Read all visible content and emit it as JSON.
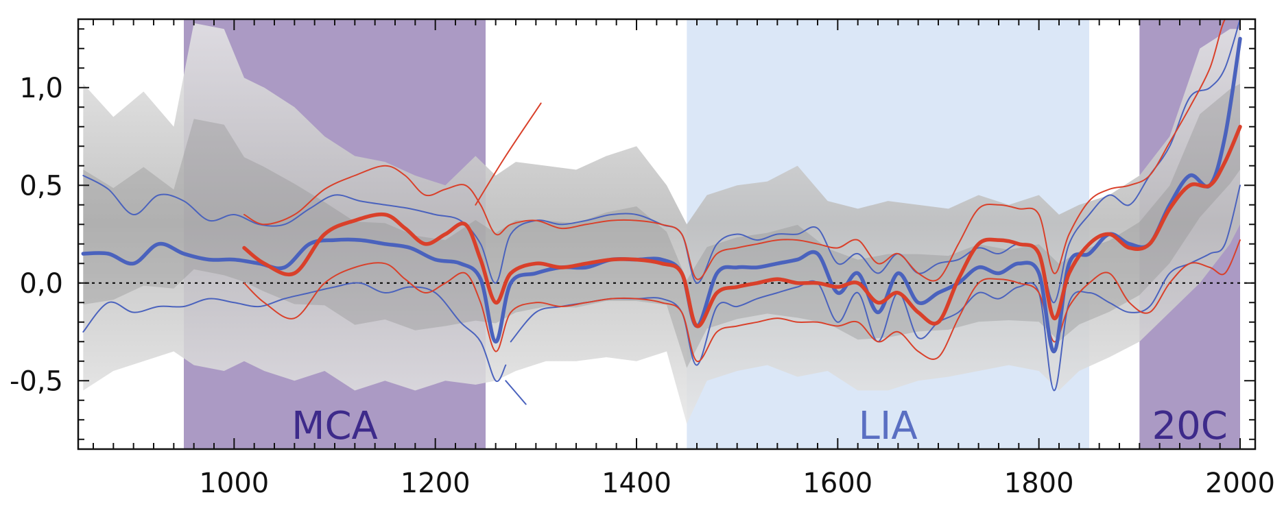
{
  "chart_data": {
    "type": "line",
    "title": "",
    "xlabel": "",
    "ylabel": "",
    "xlim": [
      845,
      2015
    ],
    "ylim": [
      -0.85,
      1.35
    ],
    "x_ticks": [
      1000,
      1200,
      1400,
      1600,
      1800,
      2000
    ],
    "x_tick_labels": [
      "1000",
      "1200",
      "1400",
      "1600",
      "1800",
      "2000"
    ],
    "y_ticks": [
      1.0,
      0.5,
      0.0,
      -0.5
    ],
    "y_tick_labels": [
      "1,0",
      "0,5",
      "0,0",
      "-0,5"
    ],
    "zero_line": {
      "value": 0,
      "style": "dotted",
      "color": "#000000"
    },
    "periods": [
      {
        "label": "MCA",
        "start": 950,
        "end": 1250,
        "color": "#ab9ac4",
        "text_color": "#3d2a8a"
      },
      {
        "label": "LIA",
        "start": 1450,
        "end": 1850,
        "color": "#dbe7f7",
        "text_color": "#5a6fc2"
      },
      {
        "label": "20C",
        "start": 1900,
        "end": 2000,
        "color": "#ab9ac4",
        "text_color": "#3d2a8a"
      }
    ],
    "envelope": {
      "color": "#d9d9d9",
      "x": [
        850,
        880,
        910,
        940,
        960,
        990,
        1010,
        1030,
        1060,
        1090,
        1120,
        1150,
        1180,
        1210,
        1240,
        1260,
        1280,
        1310,
        1340,
        1370,
        1400,
        1430,
        1450,
        1470,
        1500,
        1530,
        1560,
        1590,
        1620,
        1650,
        1680,
        1710,
        1740,
        1770,
        1800,
        1820,
        1840,
        1870,
        1900,
        1930,
        1960,
        1990,
        2000
      ],
      "upper": [
        1.02,
        0.85,
        0.98,
        0.8,
        1.33,
        1.3,
        1.05,
        1.0,
        0.9,
        0.75,
        0.65,
        0.62,
        0.55,
        0.5,
        0.65,
        0.55,
        0.62,
        0.6,
        0.58,
        0.65,
        0.7,
        0.5,
        0.3,
        0.45,
        0.5,
        0.52,
        0.6,
        0.42,
        0.38,
        0.42,
        0.4,
        0.38,
        0.45,
        0.4,
        0.45,
        0.35,
        0.4,
        0.45,
        0.55,
        0.75,
        1.2,
        1.3,
        1.3
      ],
      "lower": [
        -0.55,
        -0.45,
        -0.4,
        -0.35,
        -0.42,
        -0.45,
        -0.4,
        -0.45,
        -0.5,
        -0.45,
        -0.55,
        -0.5,
        -0.55,
        -0.5,
        -0.52,
        -0.5,
        -0.45,
        -0.4,
        -0.4,
        -0.38,
        -0.4,
        -0.35,
        -0.72,
        -0.5,
        -0.45,
        -0.42,
        -0.48,
        -0.45,
        -0.55,
        -0.55,
        -0.5,
        -0.48,
        -0.45,
        -0.42,
        -0.45,
        -0.55,
        -0.45,
        -0.38,
        -0.3,
        -0.15,
        0.0,
        0.2,
        0.3
      ]
    },
    "series": [
      {
        "style": "thick",
        "color": "#4a62bd",
        "x": [
          850,
          875,
          900,
          925,
          950,
          975,
          1000,
          1025,
          1050,
          1075,
          1100,
          1125,
          1150,
          1175,
          1200,
          1225,
          1245,
          1260,
          1275,
          1300,
          1325,
          1350,
          1375,
          1400,
          1425,
          1445,
          1460,
          1480,
          1500,
          1520,
          1540,
          1560,
          1580,
          1600,
          1620,
          1640,
          1660,
          1680,
          1700,
          1720,
          1740,
          1760,
          1780,
          1800,
          1815,
          1830,
          1850,
          1870,
          1890,
          1910,
          1930,
          1950,
          1970,
          1985,
          2000
        ],
        "y": [
          0.15,
          0.15,
          0.1,
          0.2,
          0.15,
          0.12,
          0.12,
          0.1,
          0.08,
          0.2,
          0.22,
          0.22,
          0.2,
          0.18,
          0.12,
          0.1,
          0.02,
          -0.3,
          0.0,
          0.05,
          0.08,
          0.08,
          0.12,
          0.12,
          0.12,
          0.05,
          -0.22,
          0.05,
          0.08,
          0.08,
          0.1,
          0.12,
          0.15,
          -0.05,
          0.05,
          -0.15,
          0.05,
          -0.1,
          -0.05,
          0.0,
          0.08,
          0.05,
          0.1,
          0.05,
          -0.35,
          0.1,
          0.15,
          0.25,
          0.2,
          0.2,
          0.4,
          0.55,
          0.5,
          0.75,
          1.25
        ]
      },
      {
        "style": "thin",
        "color": "#4a62bd",
        "x": [
          850,
          875,
          900,
          925,
          950,
          975,
          1000,
          1025,
          1050,
          1075,
          1100,
          1125,
          1150,
          1175,
          1200,
          1225,
          1245,
          1260,
          1275,
          1300,
          1325,
          1350,
          1375,
          1400,
          1425,
          1445,
          1460,
          1480,
          1500,
          1520,
          1540,
          1560,
          1580,
          1600,
          1620,
          1640,
          1660,
          1680,
          1700,
          1720,
          1740,
          1760,
          1780,
          1800,
          1815,
          1830,
          1850,
          1870,
          1890,
          1910,
          1930,
          1950,
          1970,
          1985,
          2000
        ],
        "y": [
          0.55,
          0.48,
          0.35,
          0.45,
          0.42,
          0.32,
          0.35,
          0.3,
          0.3,
          0.38,
          0.45,
          0.42,
          0.4,
          0.38,
          0.35,
          0.32,
          0.2,
          0.0,
          0.25,
          0.32,
          0.3,
          0.32,
          0.35,
          0.35,
          0.3,
          0.25,
          0.0,
          0.2,
          0.25,
          0.22,
          0.25,
          0.25,
          0.28,
          0.1,
          0.15,
          0.05,
          0.15,
          0.05,
          0.1,
          0.12,
          0.18,
          0.15,
          0.2,
          0.15,
          -0.1,
          0.2,
          0.35,
          0.45,
          0.4,
          0.55,
          0.7,
          0.95,
          1.0,
          1.1,
          1.35
        ]
      },
      {
        "style": "thin",
        "color": "#4a62bd",
        "x": [
          850,
          875,
          900,
          925,
          950,
          975,
          1000,
          1025,
          1050,
          1075,
          1100,
          1125,
          1150,
          1175,
          1200,
          1225,
          1245,
          1260,
          1270
        ],
        "y": [
          -0.25,
          -0.1,
          -0.15,
          -0.12,
          -0.12,
          -0.08,
          -0.1,
          -0.12,
          -0.08,
          -0.05,
          -0.02,
          0.0,
          -0.05,
          -0.02,
          -0.05,
          -0.2,
          -0.3,
          -0.5,
          -0.42
        ]
      },
      {
        "style": "thin",
        "color": "#4a62bd",
        "x": [
          1270,
          1290
        ],
        "y": [
          -0.5,
          -0.62
        ]
      },
      {
        "style": "thin",
        "color": "#4a62bd",
        "x": [
          1275,
          1300,
          1325,
          1350,
          1375,
          1400,
          1425,
          1445,
          1460,
          1480,
          1500,
          1520,
          1540,
          1560,
          1580,
          1600,
          1620,
          1640,
          1660,
          1680,
          1700,
          1720,
          1740,
          1760,
          1780,
          1800,
          1815,
          1830,
          1850,
          1870,
          1890,
          1910,
          1930,
          1950,
          1970,
          1985,
          2000
        ],
        "y": [
          -0.3,
          -0.15,
          -0.12,
          -0.1,
          -0.08,
          -0.08,
          -0.08,
          -0.15,
          -0.42,
          -0.12,
          -0.12,
          -0.08,
          -0.05,
          -0.02,
          0.0,
          -0.2,
          -0.05,
          -0.3,
          -0.05,
          -0.28,
          -0.2,
          -0.15,
          -0.05,
          -0.08,
          -0.02,
          -0.05,
          -0.55,
          -0.1,
          -0.05,
          -0.1,
          -0.15,
          -0.12,
          0.05,
          0.1,
          0.15,
          0.2,
          0.5
        ]
      },
      {
        "style": "thick",
        "color": "#d9402a",
        "x": [
          1010,
          1030,
          1060,
          1090,
          1120,
          1150,
          1170,
          1190,
          1210,
          1230,
          1245,
          1260,
          1275,
          1300,
          1325,
          1350,
          1375,
          1400,
          1425,
          1445,
          1460,
          1480,
          1500,
          1520,
          1540,
          1560,
          1580,
          1600,
          1620,
          1640,
          1660,
          1680,
          1700,
          1720,
          1740,
          1760,
          1780,
          1800,
          1815,
          1830,
          1850,
          1870,
          1890,
          1910,
          1930,
          1950,
          1970,
          1985,
          2000
        ],
        "y": [
          0.18,
          0.1,
          0.05,
          0.25,
          0.32,
          0.35,
          0.28,
          0.2,
          0.25,
          0.3,
          0.12,
          -0.1,
          0.05,
          0.1,
          0.08,
          0.1,
          0.12,
          0.12,
          0.1,
          0.05,
          -0.22,
          -0.05,
          -0.02,
          0.0,
          0.02,
          0.0,
          0.0,
          -0.02,
          0.0,
          -0.1,
          -0.05,
          -0.15,
          -0.2,
          0.02,
          0.2,
          0.22,
          0.2,
          0.15,
          -0.18,
          0.05,
          0.2,
          0.25,
          0.18,
          0.2,
          0.38,
          0.5,
          0.5,
          0.62,
          0.8
        ]
      },
      {
        "style": "thin",
        "color": "#d9402a",
        "x": [
          1010,
          1030,
          1060,
          1090,
          1120,
          1150,
          1170,
          1190,
          1210,
          1230,
          1245,
          1260,
          1275,
          1300,
          1325,
          1350,
          1375,
          1400,
          1425,
          1445,
          1460,
          1480,
          1500,
          1520,
          1540,
          1560,
          1580,
          1600,
          1620,
          1640,
          1660,
          1680,
          1700,
          1720,
          1740,
          1760,
          1780,
          1800,
          1815,
          1830,
          1850,
          1870,
          1890,
          1910,
          1930,
          1950,
          1970,
          1985,
          2000
        ],
        "y": [
          0.35,
          0.3,
          0.35,
          0.48,
          0.55,
          0.6,
          0.55,
          0.45,
          0.48,
          0.5,
          0.4,
          0.25,
          0.3,
          0.32,
          0.28,
          0.3,
          0.32,
          0.32,
          0.3,
          0.25,
          0.02,
          0.15,
          0.18,
          0.2,
          0.22,
          0.22,
          0.2,
          0.18,
          0.22,
          0.1,
          0.15,
          0.05,
          0.02,
          0.2,
          0.38,
          0.4,
          0.38,
          0.35,
          0.05,
          0.25,
          0.42,
          0.48,
          0.5,
          0.55,
          0.72,
          0.9,
          1.1,
          1.35,
          1.38
        ]
      },
      {
        "style": "thin",
        "color": "#d9402a",
        "x": [
          1240,
          1270,
          1305
        ],
        "y": [
          0.4,
          0.65,
          0.92
        ]
      },
      {
        "style": "thin",
        "color": "#d9402a",
        "x": [
          1010,
          1030,
          1060,
          1090,
          1120,
          1150,
          1170,
          1190,
          1210,
          1230,
          1245,
          1260,
          1275,
          1300,
          1325,
          1350,
          1375,
          1400,
          1425,
          1445,
          1460,
          1480,
          1500,
          1520,
          1540,
          1560,
          1580,
          1600,
          1620,
          1640,
          1660,
          1680,
          1700,
          1720,
          1740,
          1760,
          1780,
          1800,
          1815,
          1830,
          1850,
          1870,
          1890,
          1910,
          1930,
          1950,
          1970,
          1985,
          2000
        ],
        "y": [
          0.0,
          -0.1,
          -0.18,
          0.0,
          0.08,
          0.1,
          0.02,
          -0.05,
          0.0,
          0.05,
          -0.1,
          -0.35,
          -0.15,
          -0.1,
          -0.12,
          -0.1,
          -0.08,
          -0.08,
          -0.1,
          -0.15,
          -0.4,
          -0.25,
          -0.22,
          -0.2,
          -0.18,
          -0.2,
          -0.2,
          -0.22,
          -0.2,
          -0.3,
          -0.25,
          -0.35,
          -0.38,
          -0.18,
          0.0,
          0.02,
          0.0,
          -0.05,
          -0.3,
          -0.12,
          0.0,
          0.05,
          -0.1,
          -0.15,
          0.0,
          0.1,
          0.08,
          0.05,
          0.22
        ]
      }
    ]
  }
}
